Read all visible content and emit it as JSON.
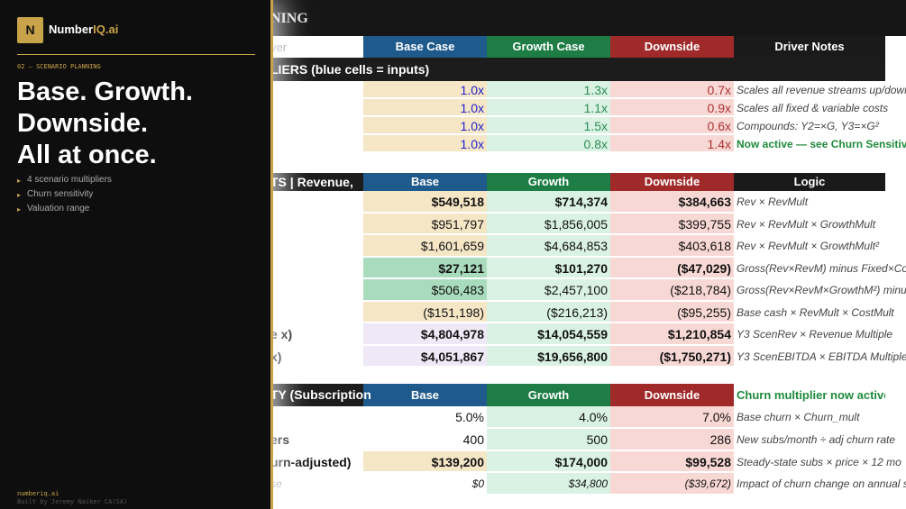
{
  "sidebar": {
    "logo": "N",
    "brand": "Number",
    "brand_accent": "IQ.ai",
    "section": "02 — SCENARIO PLANNING",
    "headline": [
      "Base. Growth.",
      "Downside.",
      "All at once."
    ],
    "bullets": [
      "4 scenario multipliers",
      "Churn sensitivity",
      "Valuation range"
    ],
    "footer_url": "numberiq.ai",
    "footer_credit": "Built by Jeremy Naiker CA(SA)"
  },
  "sheet": {
    "title": "NING",
    "header": {
      "label": "ver",
      "columns": [
        "Base Case",
        "Growth Case",
        "Downside",
        "Driver Notes"
      ]
    },
    "sections": [
      {
        "title": "LIERS  (blue cells = inputs)",
        "rows": [
          {
            "cells": [
              "1.0x",
              "1.3x",
              "0.7x"
            ],
            "note": "Scales all revenue streams up/down"
          },
          {
            "cells": [
              "1.0x",
              "1.1x",
              "0.9x"
            ],
            "note": "Scales all fixed & variable costs"
          },
          {
            "cells": [
              "1.0x",
              "1.5x",
              "0.6x"
            ],
            "note": "Compounds: Y2=×G, Y3=×G²"
          },
          {
            "cells": [
              "1.0x",
              "0.8x",
              "1.4x"
            ],
            "note": "Now active — see Churn Sensitivity"
          }
        ]
      },
      {
        "title": "TS  |  Revenue,",
        "columns": [
          "Base",
          "Growth",
          "Downside",
          "Logic"
        ],
        "rows": [
          {
            "cells": [
              "$549,518",
              "$714,374",
              "$384,663"
            ],
            "note": "Rev × RevMult"
          },
          {
            "cells": [
              "$951,797",
              "$1,856,005",
              "$399,755"
            ],
            "note": "Rev × RevMult × GrowthMult"
          },
          {
            "cells": [
              "$1,601,659",
              "$4,684,853",
              "$403,618"
            ],
            "note": "Rev × RevMult × GrowthMult²"
          },
          {
            "cells": [
              "$27,121",
              "$101,270",
              "($47,029)"
            ],
            "note": "Gross(Rev×RevM) minus Fixed×CostM"
          },
          {
            "cells": [
              "$506,483",
              "$2,457,100",
              "($218,784)"
            ],
            "note": "Gross(Rev×RevM×GrowthM²) minus"
          },
          {
            "cells": [
              "($151,198)",
              "($216,213)",
              "($95,255)"
            ],
            "note": "Base cash × RevMult × CostMult"
          },
          {
            "label": "e x)",
            "cells": [
              "$4,804,978",
              "$14,054,559",
              "$1,210,854"
            ],
            "note": "Y3 ScenRev × Revenue Multiple"
          },
          {
            "label": "x)",
            "cells": [
              "$4,051,867",
              "$19,656,800",
              "($1,750,271)"
            ],
            "note": "Y3 ScenEBITDA × EBITDA Multiple"
          }
        ]
      },
      {
        "title": "TY (Subscription",
        "columns": [
          "Base",
          "Growth",
          "Downside",
          "Churn multiplier now active"
        ],
        "rows": [
          {
            "cells": [
              "5.0%",
              "4.0%",
              "7.0%"
            ],
            "note": "Base churn × Churn_mult"
          },
          {
            "label": "ers",
            "cells": [
              "400",
              "500",
              "286"
            ],
            "note": "New subs/month ÷ adj churn rate"
          },
          {
            "label": "urn-adjusted)",
            "cells": [
              "$139,200",
              "$174,000",
              "$99,528"
            ],
            "note": "Steady-state subs × price × 12 mo"
          },
          {
            "label": "se",
            "cells": [
              "$0",
              "$34,800",
              "($39,672)"
            ],
            "note": "Impact of churn change on annual s"
          }
        ]
      }
    ]
  }
}
